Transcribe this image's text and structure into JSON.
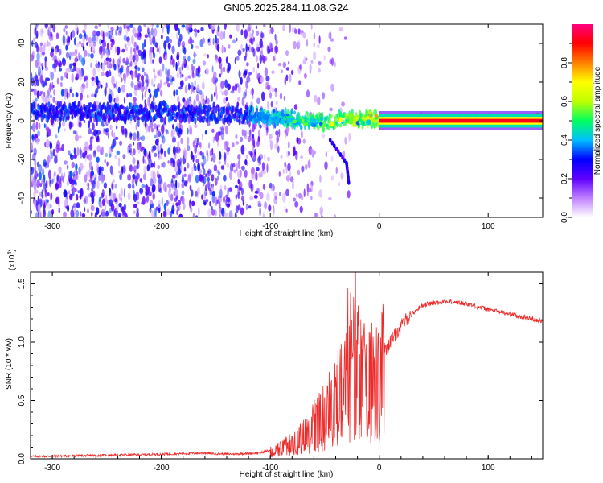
{
  "title": "GN05.2025.284.11.08.G24",
  "chart_data": [
    {
      "type": "heatmap",
      "title": "GN05.2025.284.11.08.G24",
      "xlabel": "Height of straight line (km)",
      "ylabel": "Frequency (Hz)",
      "xlim": [
        -320,
        150
      ],
      "ylim": [
        -50,
        50
      ],
      "xticks": [
        -300,
        -200,
        -100,
        0,
        100
      ],
      "yticks": [
        -40,
        -20,
        0,
        20,
        40
      ],
      "colorbar": {
        "label": "Normalized spectral amplitude",
        "range": [
          0,
          1
        ],
        "ticks": [
          0.0,
          0.2,
          0.4,
          0.6,
          0.8
        ],
        "tick_labels": [
          "0.0",
          "0.2",
          "0.4",
          "0.6",
          "0.8"
        ],
        "colors": [
          "#ffffff",
          "#c080ff",
          "#6000ff",
          "#0000ff",
          "#00c0ff",
          "#00ff60",
          "#c0ff00",
          "#ffff00",
          "#ff8000",
          "#ff0000",
          "#ff0080"
        ]
      },
      "description_band": {
        "center_hz": [
          [
            -320,
            5
          ],
          [
            -200,
            4
          ],
          [
            -120,
            3
          ],
          [
            -80,
            1
          ],
          [
            -50,
            -1
          ],
          [
            -30,
            1
          ],
          [
            0,
            0.5
          ],
          [
            150,
            0.5
          ]
        ],
        "secondary_feature": [
          [
            -45,
            -10
          ],
          [
            -30,
            -22
          ],
          [
            -28,
            -32
          ]
        ]
      }
    },
    {
      "type": "line",
      "xlabel": "Height of straight line (km)",
      "ylabel": "SNR (10 * v/v)",
      "scale_label": "(x10",
      "scale_exp": "4",
      "xlim": [
        -320,
        150
      ],
      "ylim": [
        0,
        1.6
      ],
      "xticks": [
        -300,
        -200,
        -100,
        0,
        100
      ],
      "yticks": [
        0.0,
        0.5,
        1.0,
        1.5
      ],
      "ytick_labels": [
        "0.0",
        "0.5",
        "1.0",
        "1.5"
      ],
      "series": [
        {
          "name": "SNR",
          "color": "#ee2a2a",
          "envelope": [
            [
              -320,
              0.02
            ],
            [
              -250,
              0.03
            ],
            [
              -200,
              0.04
            ],
            [
              -160,
              0.05
            ],
            [
              -140,
              0.04
            ],
            [
              -110,
              0.05
            ],
            [
              -90,
              0.1
            ],
            [
              -70,
              0.22
            ],
            [
              -50,
              0.45
            ],
            [
              -40,
              0.6
            ],
            [
              -30,
              0.75
            ],
            [
              -20,
              0.85
            ],
            [
              -10,
              0.85
            ],
            [
              0,
              0.85
            ],
            [
              10,
              1.0
            ],
            [
              25,
              1.2
            ],
            [
              40,
              1.32
            ],
            [
              60,
              1.35
            ],
            [
              80,
              1.33
            ],
            [
              100,
              1.28
            ],
            [
              120,
              1.24
            ],
            [
              150,
              1.18
            ]
          ],
          "spike": {
            "x": -22,
            "y": 1.6
          }
        }
      ]
    }
  ]
}
